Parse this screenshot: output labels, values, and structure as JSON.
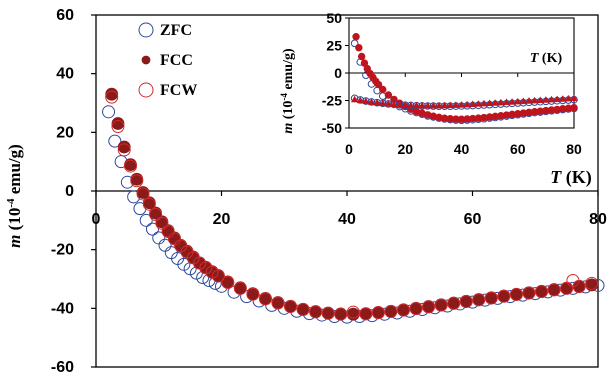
{
  "chart_data": [
    {
      "type": "scatter",
      "title": "",
      "xlabel": "T (K)",
      "ylabel": "m (10^-4 emu/g)",
      "xlim": [
        0,
        80
      ],
      "ylim": [
        -60,
        60
      ],
      "x_ticks": [
        "0",
        "20",
        "40",
        "60",
        "80"
      ],
      "y_ticks": [
        "60",
        "40",
        "20",
        "0",
        "-20",
        "-40",
        "-60"
      ],
      "legend_position": "top-left",
      "series": [
        {
          "name": "ZFC",
          "marker": "open-circle",
          "color": "#2b4a9e",
          "x": [
            2,
            3,
            4,
            5,
            6,
            7,
            8,
            9,
            10,
            11,
            12,
            13,
            14,
            15,
            16,
            17,
            18,
            19,
            20,
            22,
            24,
            26,
            28,
            30,
            32,
            34,
            36,
            38,
            40,
            42,
            44,
            46,
            48,
            50,
            52,
            54,
            56,
            58,
            60,
            62,
            64,
            66,
            68,
            70,
            72,
            74,
            76,
            78,
            80
          ],
          "y": [
            27,
            17,
            10,
            3,
            -2,
            -6,
            -10,
            -13,
            -16,
            -18.5,
            -21,
            -23,
            -25,
            -26.5,
            -28,
            -29.5,
            -30.5,
            -31.5,
            -32.5,
            -34.5,
            -36,
            -37.5,
            -39,
            -40,
            -41,
            -41.8,
            -42.3,
            -42.8,
            -43,
            -42.8,
            -42.5,
            -42,
            -41.6,
            -41,
            -40.4,
            -39.8,
            -39.2,
            -38.5,
            -37.9,
            -37.2,
            -36.6,
            -36,
            -35.5,
            -35,
            -34.4,
            -33.8,
            -33.2,
            -32.7,
            -32.2
          ]
        },
        {
          "name": "FCC",
          "marker": "filled-circle",
          "color": "#8b1a1a",
          "x": [
            2.5,
            3.5,
            4.5,
            5.5,
            6.5,
            7.5,
            8.5,
            9.5,
            10.5,
            11.5,
            12.5,
            13.5,
            14.5,
            15.5,
            16.5,
            17.5,
            18.5,
            19.5,
            21,
            23,
            25,
            27,
            29,
            31,
            33,
            35,
            37,
            39,
            41,
            43,
            45,
            47,
            49,
            51,
            53,
            55,
            57,
            59,
            61,
            63,
            65,
            67,
            69,
            71,
            73,
            75,
            77,
            79
          ],
          "y": [
            33,
            23,
            15,
            9,
            4,
            -0.5,
            -4,
            -7.5,
            -10.5,
            -13.5,
            -16,
            -18.5,
            -20.5,
            -22.5,
            -24.5,
            -26,
            -27.5,
            -28.8,
            -31,
            -33,
            -35,
            -36.6,
            -38,
            -39.3,
            -40.3,
            -41.1,
            -41.6,
            -41.9,
            -42,
            -41.8,
            -41.4,
            -41,
            -40.5,
            -40,
            -39.4,
            -38.8,
            -38.2,
            -37.6,
            -37,
            -36.4,
            -35.8,
            -35.2,
            -34.7,
            -34.2,
            -33.6,
            -33.1,
            -32.5,
            -32
          ]
        },
        {
          "name": "FCW",
          "marker": "open-circle",
          "color": "#d22b2b",
          "x": [
            2.5,
            3.5,
            4.5,
            5.5,
            6.5,
            7.5,
            8.5,
            9.5,
            10.5,
            11.5,
            12.5,
            13.5,
            14.5,
            15.5,
            16.5,
            17.5,
            18.5,
            19.5,
            21,
            23,
            25,
            27,
            29,
            31,
            33,
            35,
            37,
            39,
            41,
            43,
            45,
            47,
            49,
            51,
            53,
            55,
            57,
            59,
            61,
            63,
            65,
            67,
            69,
            71,
            73,
            75,
            76,
            77,
            79
          ],
          "y": [
            32,
            22,
            14,
            8.5,
            3.5,
            -1,
            -4.5,
            -8,
            -11,
            -13.8,
            -16.3,
            -18.7,
            -20.8,
            -22.8,
            -24.6,
            -26.2,
            -27.7,
            -29,
            -31.2,
            -33.2,
            -35.2,
            -36.8,
            -38.2,
            -39.4,
            -40.4,
            -41.2,
            -41.7,
            -42,
            -41.3,
            -41.9,
            -41.5,
            -41.1,
            -40.6,
            -40.1,
            -39.5,
            -38.9,
            -38.3,
            -37.7,
            -37.1,
            -36.5,
            -35.9,
            -35.3,
            -34.8,
            -34.3,
            -33.7,
            -33.2,
            -30.5,
            -32.6,
            -31.5
          ]
        }
      ]
    },
    {
      "type": "scatter",
      "title": "",
      "xlabel": "T (K)",
      "ylabel": "m (10^-4 emu/g)",
      "xlim": [
        0,
        80
      ],
      "ylim": [
        -50,
        50
      ],
      "x_ticks": [
        "0",
        "20",
        "40",
        "60",
        "80"
      ],
      "y_ticks": [
        "50",
        "25",
        "0",
        "-25",
        "-50"
      ],
      "series": [
        {
          "name": "",
          "marker": "open-circle",
          "color": "#2b4a9e",
          "x": [
            2,
            4,
            6,
            8,
            10,
            12,
            14,
            16,
            18,
            20,
            22,
            24,
            26,
            28,
            30,
            32,
            34,
            36,
            38,
            40,
            42,
            44,
            46,
            48,
            50,
            52,
            54,
            56,
            58,
            60,
            62,
            64,
            66,
            68,
            70,
            72,
            74,
            76,
            78,
            80
          ],
          "y": [
            27,
            10,
            -2,
            -10,
            -16,
            -21,
            -25,
            -28,
            -30.5,
            -32.5,
            -34.5,
            -36,
            -37.5,
            -39,
            -40,
            -41,
            -41.8,
            -42.3,
            -42.8,
            -43,
            -42.8,
            -42.5,
            -42,
            -41.6,
            -41,
            -40.4,
            -39.8,
            -39.2,
            -38.5,
            -37.9,
            -37.2,
            -36.6,
            -36,
            -35.5,
            -35,
            -34.4,
            -33.8,
            -33.2,
            -32.7,
            -32.2
          ]
        },
        {
          "name": "",
          "marker": "filled-circle",
          "color": "#c0141c",
          "x": [
            2.5,
            3.5,
            4.5,
            5.5,
            6.5,
            7.5,
            8.5,
            9.5,
            10.5,
            12,
            14,
            16,
            18,
            20,
            22,
            24,
            26,
            28,
            30,
            32,
            34,
            36,
            38,
            40,
            42,
            44,
            46,
            48,
            50,
            52,
            54,
            56,
            58,
            60,
            62,
            64,
            66,
            68,
            70,
            72,
            74,
            76,
            78,
            80
          ],
          "y": [
            33,
            23,
            15,
            9,
            4,
            -0.5,
            -4,
            -7.5,
            -10.5,
            -15,
            -20,
            -24,
            -27.5,
            -30.5,
            -33,
            -35,
            -36.6,
            -38,
            -39.3,
            -40.3,
            -41.1,
            -41.6,
            -41.9,
            -42,
            -41.8,
            -41.4,
            -41,
            -40.5,
            -40,
            -39.4,
            -38.8,
            -38.2,
            -37.6,
            -37,
            -36.4,
            -35.8,
            -35.2,
            -34.7,
            -34.2,
            -33.6,
            -33.1,
            -32.5,
            -32,
            -31.5
          ]
        },
        {
          "name": "",
          "marker": "open-circle",
          "color": "#2b4a9e",
          "x": [
            2,
            4,
            6,
            8,
            10,
            12,
            14,
            16,
            18,
            20,
            22,
            24,
            26,
            28,
            30,
            32,
            34,
            36,
            38,
            40,
            42,
            44,
            46,
            48,
            50,
            52,
            54,
            56,
            58,
            60,
            62,
            64,
            66,
            68,
            70,
            72,
            74,
            76,
            78,
            80
          ],
          "y": [
            -23,
            -24.5,
            -25.5,
            -26.3,
            -27,
            -27.6,
            -28.1,
            -28.5,
            -28.9,
            -29.2,
            -29.5,
            -29.7,
            -29.9,
            -30,
            -30.1,
            -30.2,
            -30.2,
            -30.2,
            -30.1,
            -30,
            -29.8,
            -29.6,
            -29.4,
            -29.1,
            -28.8,
            -28.5,
            -28.2,
            -27.9,
            -27.6,
            -27.3,
            -27,
            -26.7,
            -26.4,
            -26.1,
            -25.8,
            -25.5,
            -25.2,
            -24.9,
            -24.6,
            -24.3
          ]
        },
        {
          "name": "",
          "marker": "filled-triangle",
          "color": "#c0141c",
          "x": [
            2,
            4,
            6,
            8,
            10,
            12,
            14,
            16,
            18,
            20,
            22,
            24,
            26,
            28,
            30,
            32,
            34,
            36,
            38,
            40,
            42,
            44,
            46,
            48,
            50,
            52,
            54,
            56,
            58,
            60,
            62,
            64,
            66,
            68,
            70,
            72,
            74,
            76,
            78,
            80
          ],
          "y": [
            -24,
            -24.8,
            -25.6,
            -26.3,
            -26.9,
            -27.4,
            -27.9,
            -28.3,
            -28.7,
            -29,
            -29.3,
            -29.5,
            -29.6,
            -29.7,
            -29.7,
            -29.6,
            -29.5,
            -29.3,
            -29.1,
            -28.9,
            -28.6,
            -28.3,
            -28,
            -27.7,
            -27.4,
            -27.1,
            -26.8,
            -26.5,
            -26.2,
            -25.9,
            -25.6,
            -25.3,
            -25,
            -24.7,
            -24.4,
            -24.1,
            -23.8,
            -23.5,
            -23.2,
            -22.9
          ]
        }
      ]
    }
  ]
}
